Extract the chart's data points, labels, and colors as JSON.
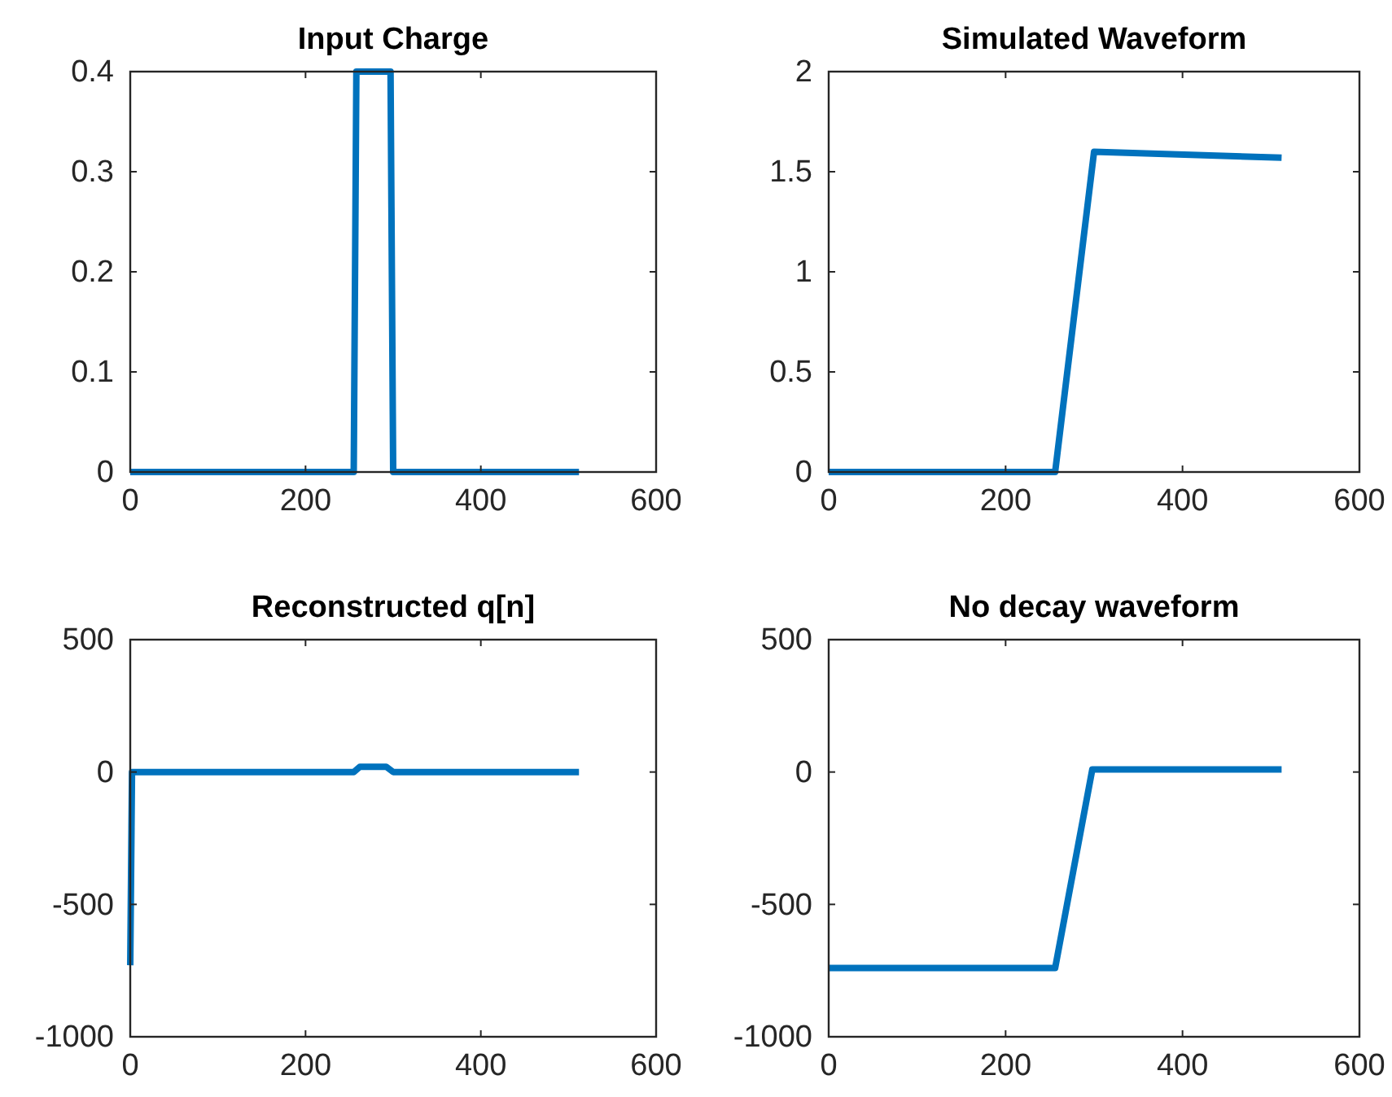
{
  "chart_data": [
    {
      "type": "line",
      "title": "Input Charge",
      "x": [
        0,
        255,
        258,
        297,
        300,
        512
      ],
      "series": [
        {
          "color": "#0072bd",
          "values": [
            0,
            0,
            0.4,
            0.4,
            0,
            0
          ]
        }
      ],
      "xlim": [
        0,
        600
      ],
      "xticks": [
        0,
        200,
        400,
        600
      ],
      "ylim": [
        0,
        0.4
      ],
      "yticks": [
        0,
        0.1,
        0.2,
        0.3,
        0.4
      ]
    },
    {
      "type": "line",
      "title": "Simulated Waveform",
      "x": [
        0,
        256,
        300,
        512
      ],
      "series": [
        {
          "color": "#0072bd",
          "values": [
            0,
            0,
            1.6,
            1.57
          ]
        }
      ],
      "xlim": [
        0,
        600
      ],
      "xticks": [
        0,
        200,
        400,
        600
      ],
      "ylim": [
        0,
        2
      ],
      "yticks": [
        0,
        0.5,
        1,
        1.5,
        2
      ]
    },
    {
      "type": "line",
      "title": "Reconstructed q[n]",
      "x": [
        0,
        2,
        255,
        262,
        292,
        300,
        512
      ],
      "series": [
        {
          "color": "#0072bd",
          "values": [
            -730,
            0,
            0,
            20,
            20,
            0,
            0
          ]
        }
      ],
      "xlim": [
        0,
        600
      ],
      "xticks": [
        0,
        200,
        400,
        600
      ],
      "ylim": [
        -1000,
        500
      ],
      "yticks": [
        -1000,
        -500,
        0,
        500
      ]
    },
    {
      "type": "line",
      "title": "No decay waveform",
      "x": [
        0,
        256,
        298,
        512
      ],
      "series": [
        {
          "color": "#0072bd",
          "values": [
            -740,
            -740,
            10,
            10
          ]
        }
      ],
      "xlim": [
        0,
        600
      ],
      "xticks": [
        0,
        200,
        400,
        600
      ],
      "ylim": [
        -1000,
        500
      ],
      "yticks": [
        -1000,
        -500,
        0,
        500
      ]
    }
  ]
}
